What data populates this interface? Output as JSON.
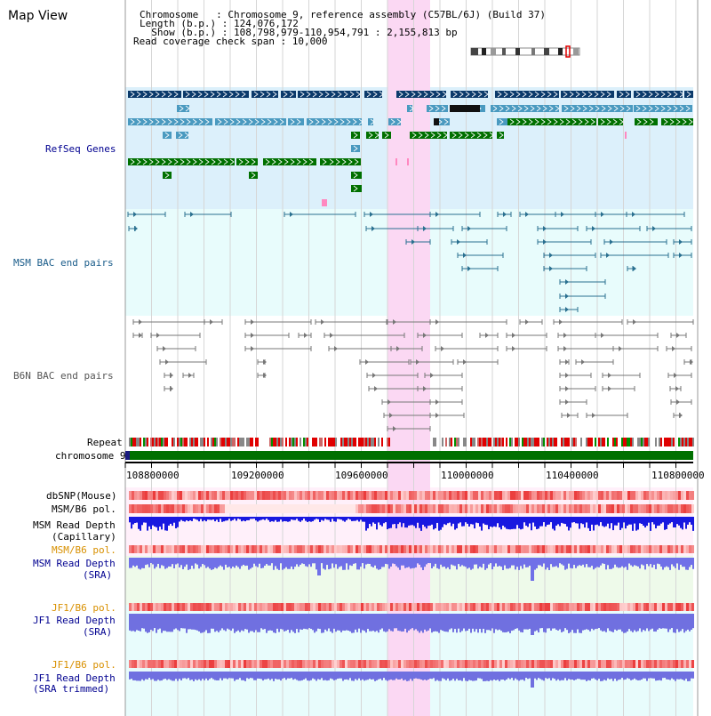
{
  "title": "Map View",
  "header": {
    "chromosome_key": "Chromosome   ",
    "chromosome_val": ": Chromosome 9, reference assembly (C57BL/6J) (Build 37)",
    "length_key": "Length (b.p.)",
    "length_val": ": 124,076,172",
    "show_key": "  Show (b.p.)",
    "show_val": ": 108,798,979-110,954,791 : 2,155,813 bp",
    "coverage": "Read coverage check span : 10,000"
  },
  "tracks": {
    "refseq": "RefSeq Genes",
    "msm_bac": "MSM BAC end pairs",
    "b6n_bac": "B6N BAC end pairs",
    "repeat": "Repeat",
    "chromosome": "chromosome 9",
    "dbsnp": "dbSNP(Mouse)",
    "msm_b6_pol_1": "MSM/B6 pol.",
    "msm_depth_cap_1": "MSM Read Depth",
    "msm_depth_cap_2": "(Capillary)",
    "msm_b6_pol_2": "MSM/B6 pol.",
    "msm_depth_sra_1": "MSM Read Depth",
    "msm_depth_sra_2": "(SRA)",
    "jf1_b6_pol_1": "JF1/B6 pol.",
    "jf1_depth_sra_1": "JF1 Read Depth",
    "jf1_depth_sra_2": "(SRA)",
    "jf1_b6_pol_2": "JF1/B6 pol.",
    "jf1_depth_trim_1": "JF1 Read Depth",
    "jf1_depth_trim_2": "(SRA trimmed)"
  },
  "axis": {
    "ticks": [
      "108800000",
      "109200000",
      "109600000",
      "110000000",
      "110400000",
      "110800000"
    ]
  },
  "colors": {
    "refseq_bg": "#dcf0fb",
    "msm_bg": "#e8fcfc",
    "highlight": "#fbd8f3",
    "gene_dark": "#0b3a6b",
    "gene_mid": "#4a9ac0",
    "gene_green": "#007000",
    "msm_label": "#1a5c8a",
    "b6n_label": "#555555",
    "blue_label": "#000090",
    "orange_label": "#d89000"
  }
}
